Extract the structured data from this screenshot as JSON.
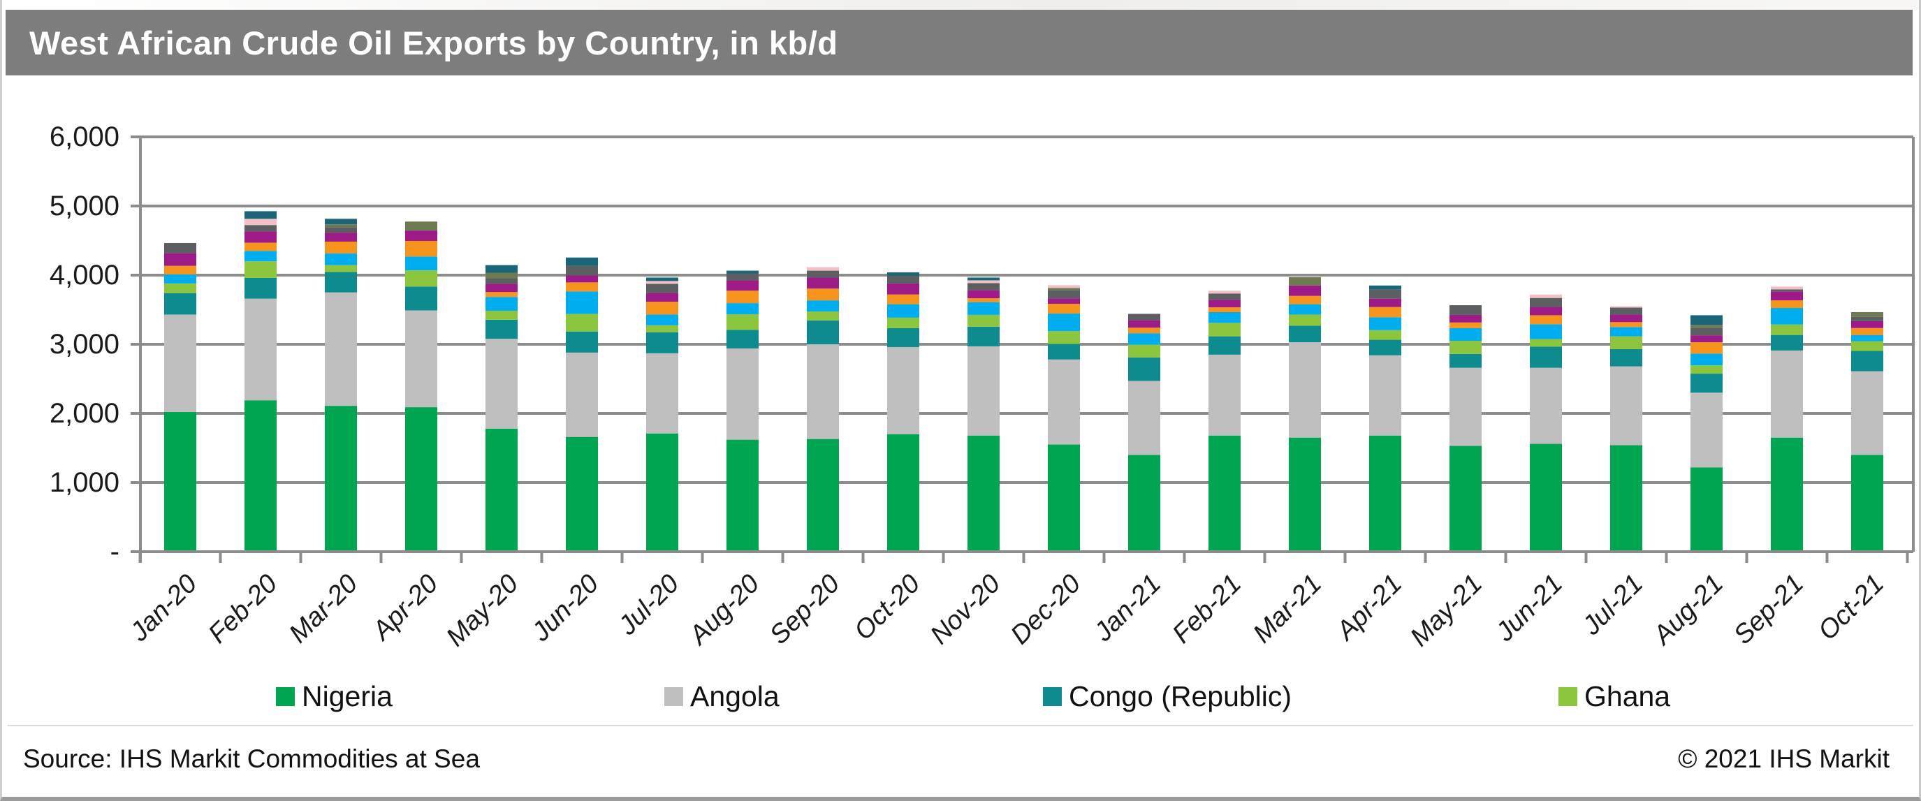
{
  "page": {
    "title": "West African Crude Oil Exports by Country, in kb/d",
    "source": "Source: IHS Markit Commodities at Sea",
    "copyright": "© 2021 IHS Markit"
  },
  "colors": {
    "title_bar_background": "#7d7d7d",
    "title_text": "#ffffff",
    "gridline": "#8c8c8c",
    "axis": "#8c8c8c"
  },
  "chart_data": {
    "type": "bar",
    "stacked": true,
    "title": "West African Crude Oil Exports by Country, in kb/d",
    "unit": "kb/d",
    "grid": true,
    "legend_position": "bottom",
    "categories": [
      "Jan-20",
      "Feb-20",
      "Mar-20",
      "Apr-20",
      "May-20",
      "Jun-20",
      "Jul-20",
      "Aug-20",
      "Sep-20",
      "Oct-20",
      "Nov-20",
      "Dec-20",
      "Jan-21",
      "Feb-21",
      "Mar-21",
      "Apr-21",
      "May-21",
      "Jun-21",
      "Jul-21",
      "Aug-21",
      "Sep-21",
      "Oct-21"
    ],
    "y_axis": {
      "min": 0,
      "max": 6000,
      "tick_interval": 1000,
      "tick_labels": [
        "-",
        "1,000",
        "2,000",
        "3,000",
        "4,000",
        "5,000",
        "6,000"
      ]
    },
    "legend": [
      {
        "label": "Nigeria",
        "color": "#00a551"
      },
      {
        "label": "Angola",
        "color": "#bfbfbf"
      },
      {
        "label": "Congo (Republic)",
        "color": "#0e8b8f"
      },
      {
        "label": "Ghana",
        "color": "#8cc63f"
      }
    ],
    "series": [
      {
        "name": "Nigeria",
        "color": "#00a551",
        "values": [
          2020,
          2190,
          2110,
          2090,
          1780,
          1660,
          1710,
          1620,
          1630,
          1700,
          1680,
          1550,
          1400,
          1680,
          1650,
          1680,
          1530,
          1560,
          1540,
          1220,
          1650,
          1400
        ]
      },
      {
        "name": "Angola",
        "color": "#bfbfbf",
        "values": [
          1410,
          1470,
          1640,
          1400,
          1300,
          1220,
          1160,
          1320,
          1370,
          1260,
          1290,
          1230,
          1070,
          1170,
          1380,
          1160,
          1130,
          1100,
          1140,
          1080,
          1260,
          1210
        ]
      },
      {
        "name": "Congo (Republic)",
        "color": "#0e8b8f",
        "values": [
          310,
          300,
          295,
          345,
          275,
          305,
          305,
          270,
          345,
          275,
          285,
          225,
          340,
          265,
          240,
          225,
          200,
          305,
          250,
          275,
          225,
          295
        ]
      },
      {
        "name": "Ghana",
        "color": "#8cc63f",
        "values": [
          140,
          240,
          100,
          235,
          130,
          255,
          100,
          225,
          130,
          150,
          170,
          185,
          185,
          195,
          160,
          140,
          190,
          110,
          185,
          120,
          150,
          140
        ]
      },
      {
        "name": "Unlabeled (light blue)",
        "color": "#00aeef",
        "values": [
          130,
          150,
          170,
          200,
          200,
          325,
          155,
          160,
          160,
          195,
          185,
          255,
          165,
          155,
          150,
          185,
          185,
          215,
          135,
          170,
          240,
          90
        ]
      },
      {
        "name": "Unlabeled (orange)",
        "color": "#f7941e",
        "values": [
          125,
          120,
          170,
          225,
          70,
          130,
          185,
          180,
          170,
          140,
          55,
          140,
          80,
          70,
          120,
          150,
          80,
          130,
          70,
          165,
          110,
          100
        ]
      },
      {
        "name": "Unlabeled (magenta)",
        "color": "#9e1b87",
        "values": [
          185,
          165,
          130,
          150,
          120,
          100,
          130,
          150,
          160,
          160,
          120,
          80,
          110,
          110,
          150,
          120,
          110,
          120,
          110,
          100,
          130,
          100
        ]
      },
      {
        "name": "Unlabeled (dark gray)",
        "color": "#5b5f61",
        "values": [
          145,
          90,
          80,
          0,
          80,
          140,
          130,
          100,
          100,
          110,
          100,
          120,
          90,
          90,
          0,
          130,
          140,
          130,
          100,
          110,
          30,
          60
        ]
      },
      {
        "name": "Unlabeled (olive green)",
        "color": "#6e7b52",
        "values": [
          0,
          0,
          40,
          130,
          80,
          0,
          0,
          0,
          0,
          0,
          0,
          30,
          0,
          0,
          120,
          0,
          0,
          0,
          0,
          40,
          0,
          70
        ]
      },
      {
        "name": "Unlabeled (pink)",
        "color": "#f2c1c7",
        "values": [
          0,
          90,
          0,
          0,
          0,
          0,
          40,
          0,
          50,
          0,
          40,
          40,
          0,
          40,
          0,
          0,
          0,
          50,
          20,
          0,
          40,
          0
        ]
      },
      {
        "name": "Unlabeled (dark blue)",
        "color": "#1a6577",
        "values": [
          0,
          110,
          80,
          0,
          110,
          120,
          50,
          40,
          0,
          50,
          40,
          0,
          0,
          0,
          0,
          60,
          0,
          0,
          0,
          140,
          0,
          0
        ]
      }
    ]
  }
}
